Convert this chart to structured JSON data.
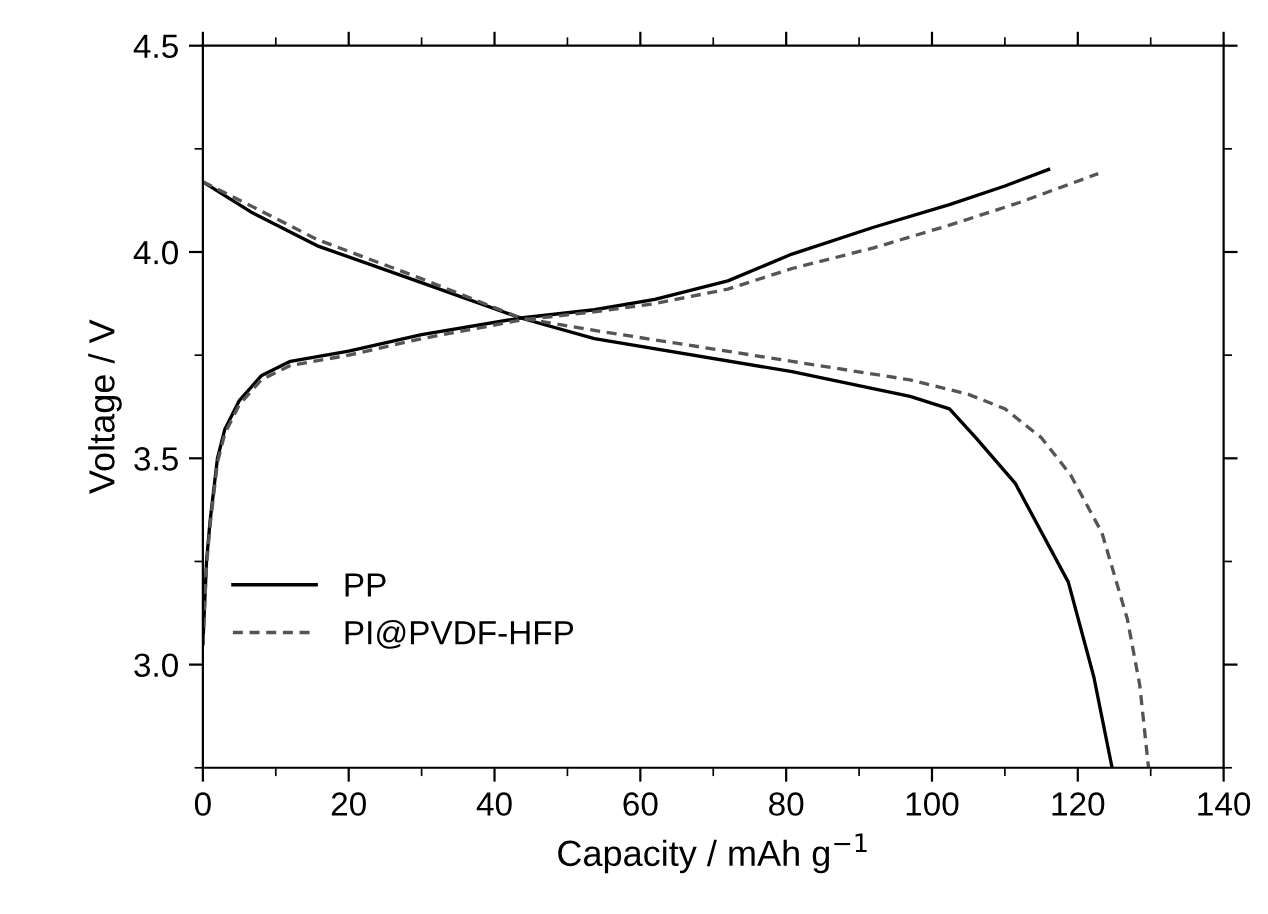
{
  "chart_data": {
    "type": "line",
    "xlabel": "Capacity / mAh g$^{−1}$",
    "ylabel": "Voltage / V",
    "xlim": [
      0,
      140
    ],
    "ylim": [
      2.75,
      4.5
    ],
    "xticks": [
      0,
      20,
      40,
      60,
      80,
      100,
      120,
      140
    ],
    "yticks": [
      {
        "value": 3.0,
        "label": "3.0"
      },
      {
        "value": 3.5,
        "label": "3.5"
      },
      {
        "value": 4.0,
        "label": "4.0"
      },
      {
        "value": 4.5,
        "label": "4.5"
      }
    ],
    "grid": false,
    "legend": "bottom left",
    "marker": "none",
    "series": [
      {
        "name": "PP",
        "color": "#000000",
        "line_style": "solid",
        "x": [
          0,
          0.5,
          1,
          2,
          3,
          5,
          8,
          12,
          20,
          30,
          43.6,
          53.7,
          62,
          72,
          80.8,
          92,
          102.4,
          110,
          116
        ],
        "values": [
          3.05,
          3.25,
          3.35,
          3.5,
          3.57,
          3.64,
          3.7,
          3.735,
          3.76,
          3.8,
          3.84,
          3.86,
          3.885,
          3.93,
          3.995,
          4.06,
          4.115,
          4.16,
          4.2
        ]
      },
      {
        "color": "#000000",
        "line_style": "solid",
        "x": [
          0,
          6.8,
          15.7,
          29.3,
          43.6,
          53.7,
          80.8,
          97,
          102.4,
          106,
          111.4,
          118.7,
          122.2,
          124.7
        ],
        "values": [
          4.17,
          4.095,
          4.015,
          3.93,
          3.84,
          3.79,
          3.71,
          3.65,
          3.62,
          3.55,
          3.44,
          3.2,
          2.97,
          2.75
        ]
      },
      {
        "name": "PI@PVDF-HFP",
        "color": "#555555",
        "line_style": "dashed",
        "x": [
          0,
          0.5,
          1,
          2,
          3,
          5,
          8,
          12,
          20,
          30,
          43.6,
          53.7,
          62,
          72,
          80.8,
          92,
          102.4,
          112,
          122.8
        ],
        "values": [
          3.05,
          3.24,
          3.34,
          3.49,
          3.56,
          3.63,
          3.69,
          3.725,
          3.75,
          3.79,
          3.835,
          3.855,
          3.875,
          3.91,
          3.96,
          4.01,
          4.065,
          4.12,
          4.19
        ]
      },
      {
        "color": "#555555",
        "line_style": "dashed",
        "x": [
          0,
          6.8,
          15.7,
          29.3,
          43.6,
          53.7,
          80.8,
          97,
          105,
          110,
          115,
          119,
          123.3,
          126.8,
          128.5,
          129.7
        ],
        "values": [
          4.17,
          4.11,
          4.03,
          3.94,
          3.84,
          3.81,
          3.735,
          3.69,
          3.655,
          3.62,
          3.55,
          3.46,
          3.32,
          3.11,
          2.95,
          2.75
        ]
      }
    ]
  }
}
